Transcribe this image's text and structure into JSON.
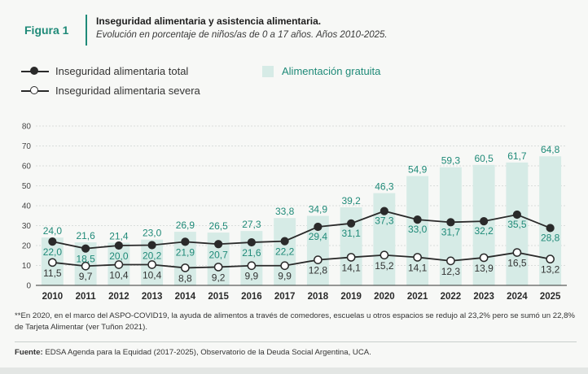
{
  "figure": {
    "label": "Figura 1",
    "title": "Inseguridad alimentaria y asistencia alimentaria.",
    "subtitle": "Evolución en porcentaje de niños/as de 0 a 17 años. Años 2010-2025."
  },
  "legend": {
    "total": "Inseguridad alimentaria total",
    "severe": "Inseguridad alimentaria severa",
    "bars": "Alimentación gratuita"
  },
  "colors": {
    "accent": "#1f8a78",
    "bar": "#d6ebe6",
    "line": "#2a2a2a"
  },
  "chart_data": {
    "type": "bar",
    "categories": [
      "2010",
      "2011",
      "2012",
      "2013",
      "2014",
      "2015",
      "2016",
      "2017",
      "2018",
      "2019",
      "2020",
      "2021",
      "2022",
      "2023",
      "2024",
      "2025"
    ],
    "yticks": [
      "0",
      "10",
      "20",
      "30",
      "40",
      "50",
      "60",
      "70",
      "80"
    ],
    "ylim": [
      0,
      80
    ],
    "grid": true,
    "series": [
      {
        "name": "Alimentación gratuita",
        "kind": "bar",
        "values": [
          24.0,
          21.6,
          21.4,
          23.0,
          26.9,
          26.5,
          27.3,
          33.8,
          34.9,
          39.2,
          46.3,
          54.9,
          59.3,
          60.5,
          61.7,
          64.8
        ],
        "labels": [
          "24,0",
          "21,6",
          "21,4",
          "23,0",
          "26,9",
          "26,5",
          "27,3",
          "33,8",
          "34,9",
          "39,2",
          "46,3",
          "54,9",
          "59,3",
          "60,5",
          "61,7",
          "64,8"
        ]
      },
      {
        "name": "Inseguridad alimentaria total",
        "kind": "line",
        "values": [
          22.0,
          18.5,
          20.0,
          20.2,
          21.9,
          20.7,
          21.6,
          22.2,
          29.4,
          31.1,
          37.3,
          33.0,
          31.7,
          32.2,
          35.5,
          28.8
        ],
        "labels": [
          "22,0",
          "18,5",
          "20,0",
          "20,2",
          "21,9",
          "20,7",
          "21,6",
          "22,2",
          "29,4",
          "31,1",
          "37,3",
          "33,0",
          "31,7",
          "32,2",
          "35,5",
          "28,8"
        ]
      },
      {
        "name": "Inseguridad alimentaria severa",
        "kind": "line",
        "values": [
          11.5,
          9.7,
          10.4,
          10.4,
          8.8,
          9.2,
          9.9,
          9.9,
          12.8,
          14.1,
          15.2,
          14.1,
          12.3,
          13.9,
          16.5,
          13.2
        ],
        "labels": [
          "11,5",
          "9,7",
          "10,4",
          "10,4",
          "8,8",
          "9,2",
          "9,9",
          "9,9",
          "12,8",
          "14,1",
          "15,2",
          "14,1",
          "12,3",
          "13,9",
          "16,5",
          "13,2"
        ]
      }
    ]
  },
  "note": "**En 2020, en el marco del ASPO-COVID19, la ayuda de alimentos a través de comedores, escuelas u otros espacios se redujo al 23,2% pero se sumó un 22,8% de Tarjeta Alimentar (ver Tuñon 2021).",
  "source": {
    "label": "Fuente:",
    "text": " EDSA Agenda para la Equidad (2017-2025), Observatorio de la Deuda Social Argentina, UCA."
  }
}
